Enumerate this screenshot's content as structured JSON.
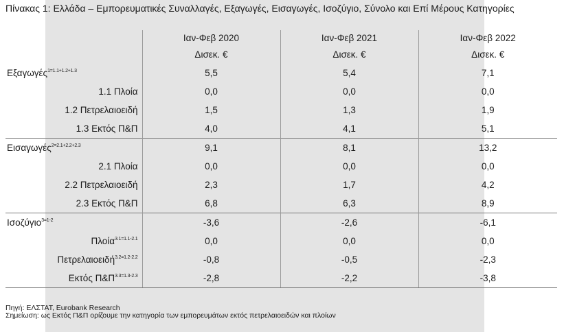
{
  "title": "Πίνακας 1: Ελλάδα – Εμπορευματικές Συναλλαγές, Εξαγωγές, Εισαγωγές, Ισοζύγιο, Σύνολο και Επί Μέρους Κατηγορίες",
  "columns": [
    "Ιαν-Φεβ 2020",
    "Ιαν-Φεβ 2021",
    "Ιαν-Φεβ 2022"
  ],
  "unit": "Δισεκ. €",
  "rows": [
    {
      "label": "Εξαγωγές",
      "sup": "1=1.1+1.2+1.3",
      "values": [
        "5,5",
        "5,4",
        "7,1"
      ]
    },
    {
      "label": "1.1 Πλοία",
      "sup": "",
      "values": [
        "0,0",
        "0,0",
        "0,0"
      ]
    },
    {
      "label": "1.2 Πετρελαιοειδή",
      "sup": "",
      "values": [
        "1,5",
        "1,3",
        "1,9"
      ]
    },
    {
      "label": "1.3 Εκτός Π&Π",
      "sup": "",
      "values": [
        "4,0",
        "4,1",
        "5,1"
      ]
    },
    {
      "label": "Εισαγωγές",
      "sup": "2=2.1+2.2+2.3",
      "values": [
        "9,1",
        "8,1",
        "13,2"
      ]
    },
    {
      "label": "2.1 Πλοία",
      "sup": "",
      "values": [
        "0,0",
        "0,0",
        "0,0"
      ]
    },
    {
      "label": "2.2 Πετρελαιοειδή",
      "sup": "",
      "values": [
        "2,3",
        "1,7",
        "4,2"
      ]
    },
    {
      "label": "2.3 Εκτός Π&Π",
      "sup": "",
      "values": [
        "6,8",
        "6,3",
        "8,9"
      ]
    },
    {
      "label": "Ισοζύγιο",
      "sup": "3=1-2",
      "values": [
        "-3,6",
        "-2,6",
        "-6,1"
      ]
    },
    {
      "label": "Πλοία",
      "sup": "3.1=1.1-2.1",
      "values": [
        "0,0",
        "0,0",
        "0,0"
      ]
    },
    {
      "label": "Πετρελαιοειδή",
      "sup": "3.2=1.2-2.2",
      "values": [
        "-0,8",
        "-0,5",
        "-2,3"
      ]
    },
    {
      "label": "Εκτός Π&Π",
      "sup": "3.3=1.3-2.3",
      "values": [
        "-2,8",
        "-2,2",
        "-3,8"
      ]
    }
  ],
  "source": "Πηγή: ΕΛΣΤΑΤ, Eurobank Research",
  "note": "Σημείωση: ως Εκτός Π&Π ορίζουμε την κατηγορία των εμπορευμάτων εκτός πετρελαιοειδών και πλοίων"
}
